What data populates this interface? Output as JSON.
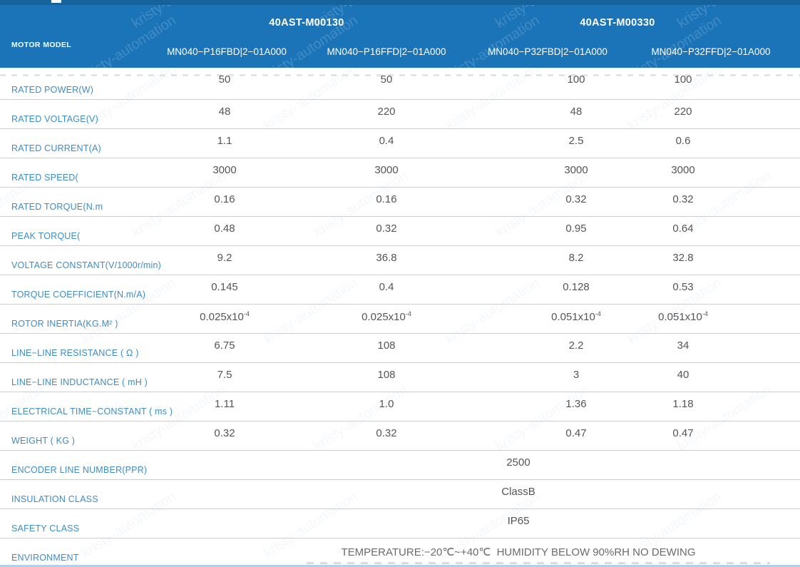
{
  "header": {
    "row_label": "MOTOR MODEL",
    "groups": [
      {
        "title": "40AST-M00130",
        "models": [
          "MN040−P16FBD|2−01A000",
          "MN040−P16FFD|2−01A000"
        ]
      },
      {
        "title": "40AST-M00330",
        "models": [
          "MN040−P32FBD|2−01A000",
          "MN040−P32FFD|2−01A000"
        ]
      }
    ]
  },
  "table": {
    "rows": [
      {
        "label": "RATED POWER(W)",
        "values": [
          "50",
          "50",
          "100",
          "100"
        ]
      },
      {
        "label": "RATED VOLTAGE(V)",
        "values": [
          "48",
          "220",
          "48",
          "220"
        ]
      },
      {
        "label": "RATED CURRENT(A)",
        "values": [
          "1.1",
          "0.4",
          "2.5",
          "0.6"
        ]
      },
      {
        "label": "RATED SPEED(",
        "values": [
          "3000",
          "3000",
          "3000",
          "3000"
        ]
      },
      {
        "label": "RATED TORQUE(N.m",
        "values": [
          "0.16",
          "0.16",
          "0.32",
          "0.32"
        ]
      },
      {
        "label": "PEAK TORQUE(",
        "values": [
          "0.48",
          "0.32",
          "0.95",
          "0.64"
        ]
      },
      {
        "label": "VOLTAGE CONSTANT(V/1000r/min)",
        "values": [
          "9.2",
          "36.8",
          "8.2",
          "32.8"
        ]
      },
      {
        "label": "TORQUE COEFFICIENT(N.m/A)",
        "values": [
          "0.145",
          "0.4",
          "0.128",
          "0.53"
        ]
      },
      {
        "label": "ROTOR INERTIA(KG.M² )",
        "values": [
          "0.025x10",
          "0.025x10",
          "0.051x10",
          "0.051x10"
        ],
        "sup": "-4"
      },
      {
        "label": "LINE−LINE RESISTANCE ( Ω )",
        "values": [
          "6.75",
          "108",
          "2.2",
          "34"
        ]
      },
      {
        "label": "LINE−LINE INDUCTANCE ( mH )",
        "values": [
          "7.5",
          "108",
          "3",
          "40"
        ]
      },
      {
        "label": "ELECTRICAL TIME−CONSTANT ( ms )",
        "values": [
          "1.11",
          "1.0",
          "1.36",
          "1.18"
        ]
      },
      {
        "label": "WEIGHT ( KG )",
        "values": [
          "0.32",
          "0.32",
          "0.47",
          "0.47"
        ]
      }
    ],
    "span_rows": [
      {
        "label": "ENCODER LINE NUMBER(PPR)",
        "value": "2500"
      },
      {
        "label": "INSULATION CLASS",
        "value": "ClassB"
      },
      {
        "label": "SAFETY CLASS",
        "value": "IP65"
      },
      {
        "label": "ENVIRONMENT",
        "value": "TEMPERATURE:−20℃~+40℃  HUMIDITY BELOW 90%RH NO DEWING"
      }
    ]
  },
  "watermark": {
    "text": "kristy-automation"
  },
  "colors": {
    "header_blue": "#1b74b8",
    "top_strip_blue": "#15629c",
    "label_blue": "#3e8cc6",
    "value_gray": "#555555",
    "row_border": "#cccccc",
    "bottom_line_blue": "#aed2ee"
  }
}
